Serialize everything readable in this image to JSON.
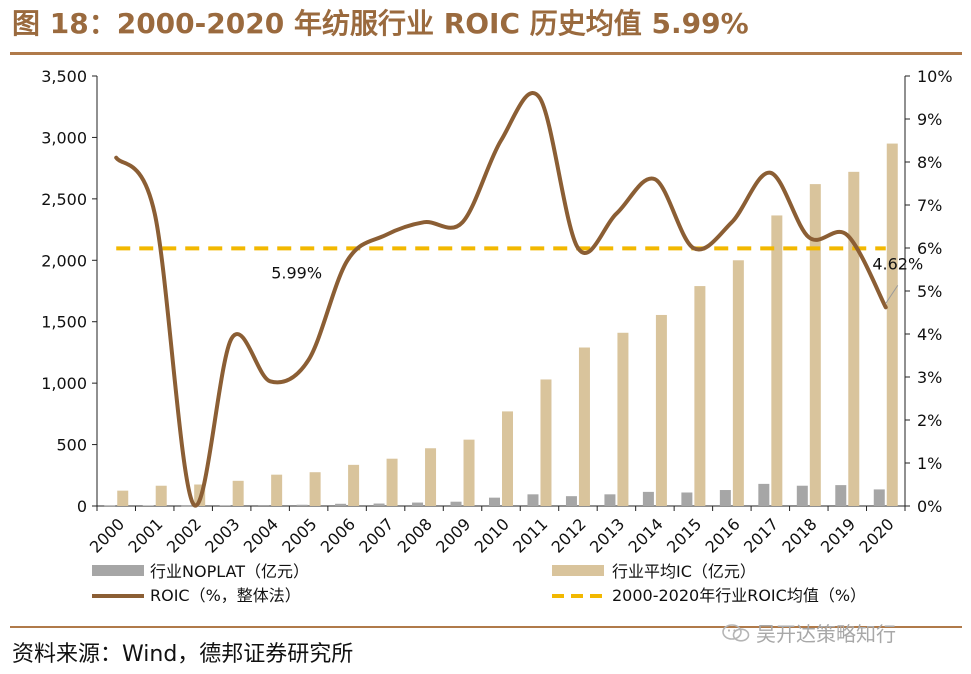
{
  "figure": {
    "title": "图 18：2000-2020 年纺服行业 ROIC 历史均值 5.99%",
    "source": "资料来源：Wind，德邦证券研究所",
    "watermark": "吴开达策略知行",
    "watermark_icon": "wechat-icon"
  },
  "colors": {
    "title": "#9a6a3e",
    "rule": "#b07a4a",
    "noplat": "#a6a6a6",
    "ic": "#d9c49c",
    "roic": "#8b5e34",
    "mean": "#f2b800"
  },
  "chart_data": {
    "type": "bar",
    "categories": [
      "2000",
      "2001",
      "2002",
      "2003",
      "2004",
      "2005",
      "2006",
      "2007",
      "2008",
      "2009",
      "2010",
      "2011",
      "2012",
      "2013",
      "2014",
      "2015",
      "2016",
      "2017",
      "2018",
      "2019",
      "2020"
    ],
    "left_axis": {
      "min": 0,
      "max": 3500,
      "ticks": [
        "0",
        "500",
        "1,000",
        "1,500",
        "2,000",
        "2,500",
        "3,000",
        "3,500"
      ],
      "tick_values": [
        0,
        500,
        1000,
        1500,
        2000,
        2500,
        3000,
        3500
      ]
    },
    "right_axis": {
      "min": 0,
      "max": 10,
      "ticks": [
        "0%",
        "1%",
        "2%",
        "3%",
        "4%",
        "5%",
        "6%",
        "7%",
        "8%",
        "9%",
        "10%"
      ],
      "tick_values": [
        0,
        1,
        2,
        3,
        4,
        5,
        6,
        7,
        8,
        9,
        10
      ]
    },
    "series": [
      {
        "name": "行业NOPLAT（亿元）",
        "type": "bar",
        "axis": "left",
        "values": [
          3,
          5,
          2,
          6,
          8,
          10,
          18,
          20,
          28,
          35,
          68,
          95,
          80,
          95,
          115,
          110,
          130,
          180,
          165,
          170,
          135
        ]
      },
      {
        "name": "行业平均IC（亿元）",
        "type": "bar",
        "axis": "left",
        "values": [
          125,
          165,
          175,
          205,
          255,
          275,
          335,
          385,
          470,
          540,
          770,
          1030,
          1290,
          1410,
          1555,
          1790,
          2000,
          2365,
          2620,
          2720,
          2950
        ]
      },
      {
        "name": "ROIC（%，整体法）",
        "type": "line",
        "axis": "right",
        "values": [
          8.1,
          6.8,
          0.05,
          3.9,
          2.9,
          3.4,
          5.7,
          6.3,
          6.6,
          6.6,
          8.5,
          9.5,
          6.0,
          6.8,
          7.6,
          6.0,
          6.6,
          7.75,
          6.25,
          6.3,
          4.62
        ]
      },
      {
        "name": "2000-2020年行业ROIC均值（%）",
        "type": "line",
        "axis": "right",
        "style": "dashed",
        "values": [
          5.99,
          5.99,
          5.99,
          5.99,
          5.99,
          5.99,
          5.99,
          5.99,
          5.99,
          5.99,
          5.99,
          5.99,
          5.99,
          5.99,
          5.99,
          5.99,
          5.99,
          5.99,
          5.99,
          5.99,
          5.99
        ]
      }
    ],
    "annotations": [
      "5.99%",
      "4.62%"
    ],
    "legend_position": "bottom",
    "grid": false
  }
}
